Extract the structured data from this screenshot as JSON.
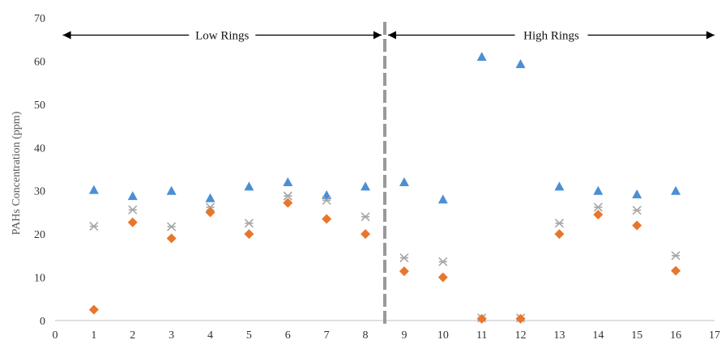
{
  "chart_data": {
    "type": "scatter",
    "title": "",
    "xlabel": "",
    "ylabel": "PAHs Concentration (ppm)",
    "xlim": [
      0,
      17
    ],
    "ylim": [
      0,
      70
    ],
    "x_ticks": [
      "0",
      "1",
      "2",
      "3",
      "4",
      "5",
      "6",
      "7",
      "8",
      "9",
      "10",
      "11",
      "12",
      "13",
      "14",
      "15",
      "16",
      "17"
    ],
    "y_ticks": [
      "0",
      "10",
      "20",
      "30",
      "40",
      "50",
      "60",
      "70"
    ],
    "grid": false,
    "legend": "none",
    "divider_x": 8.5,
    "regions": [
      {
        "label": "Low Rings",
        "x_start": 0.2,
        "x_end": 8.5
      },
      {
        "label": "High Rings",
        "x_start": 8.5,
        "x_end": 17
      }
    ],
    "series": [
      {
        "marker": "triangle",
        "color": "#4a8fd4",
        "x": [
          1,
          2,
          3,
          4,
          5,
          6,
          7,
          8,
          9,
          10,
          11,
          12,
          13,
          14,
          15,
          16
        ],
        "y": [
          30.2,
          28.8,
          30.0,
          28.3,
          31.0,
          32.0,
          29.0,
          31.0,
          32.0,
          28.0,
          61.0,
          59.3,
          31.0,
          30.0,
          29.2,
          30.0
        ]
      },
      {
        "marker": "star",
        "color": "#a6a6a6",
        "x": [
          1,
          2,
          3,
          4,
          5,
          6,
          7,
          8,
          9,
          10,
          11,
          12,
          13,
          14,
          15,
          16
        ],
        "y": [
          21.8,
          25.6,
          21.7,
          26.2,
          22.5,
          28.8,
          27.8,
          24.0,
          14.5,
          13.6,
          0.6,
          0.6,
          22.5,
          26.2,
          25.5,
          15.0
        ]
      },
      {
        "marker": "diamond",
        "color": "#e8762b",
        "x": [
          1,
          2,
          3,
          4,
          5,
          6,
          7,
          8,
          9,
          10,
          11,
          12,
          13,
          14,
          15,
          16
        ],
        "y": [
          2.5,
          22.7,
          19.0,
          25.0,
          20.0,
          27.2,
          23.5,
          20.0,
          11.4,
          10.0,
          0.4,
          0.4,
          20.0,
          24.5,
          22.0,
          11.5
        ]
      }
    ]
  }
}
